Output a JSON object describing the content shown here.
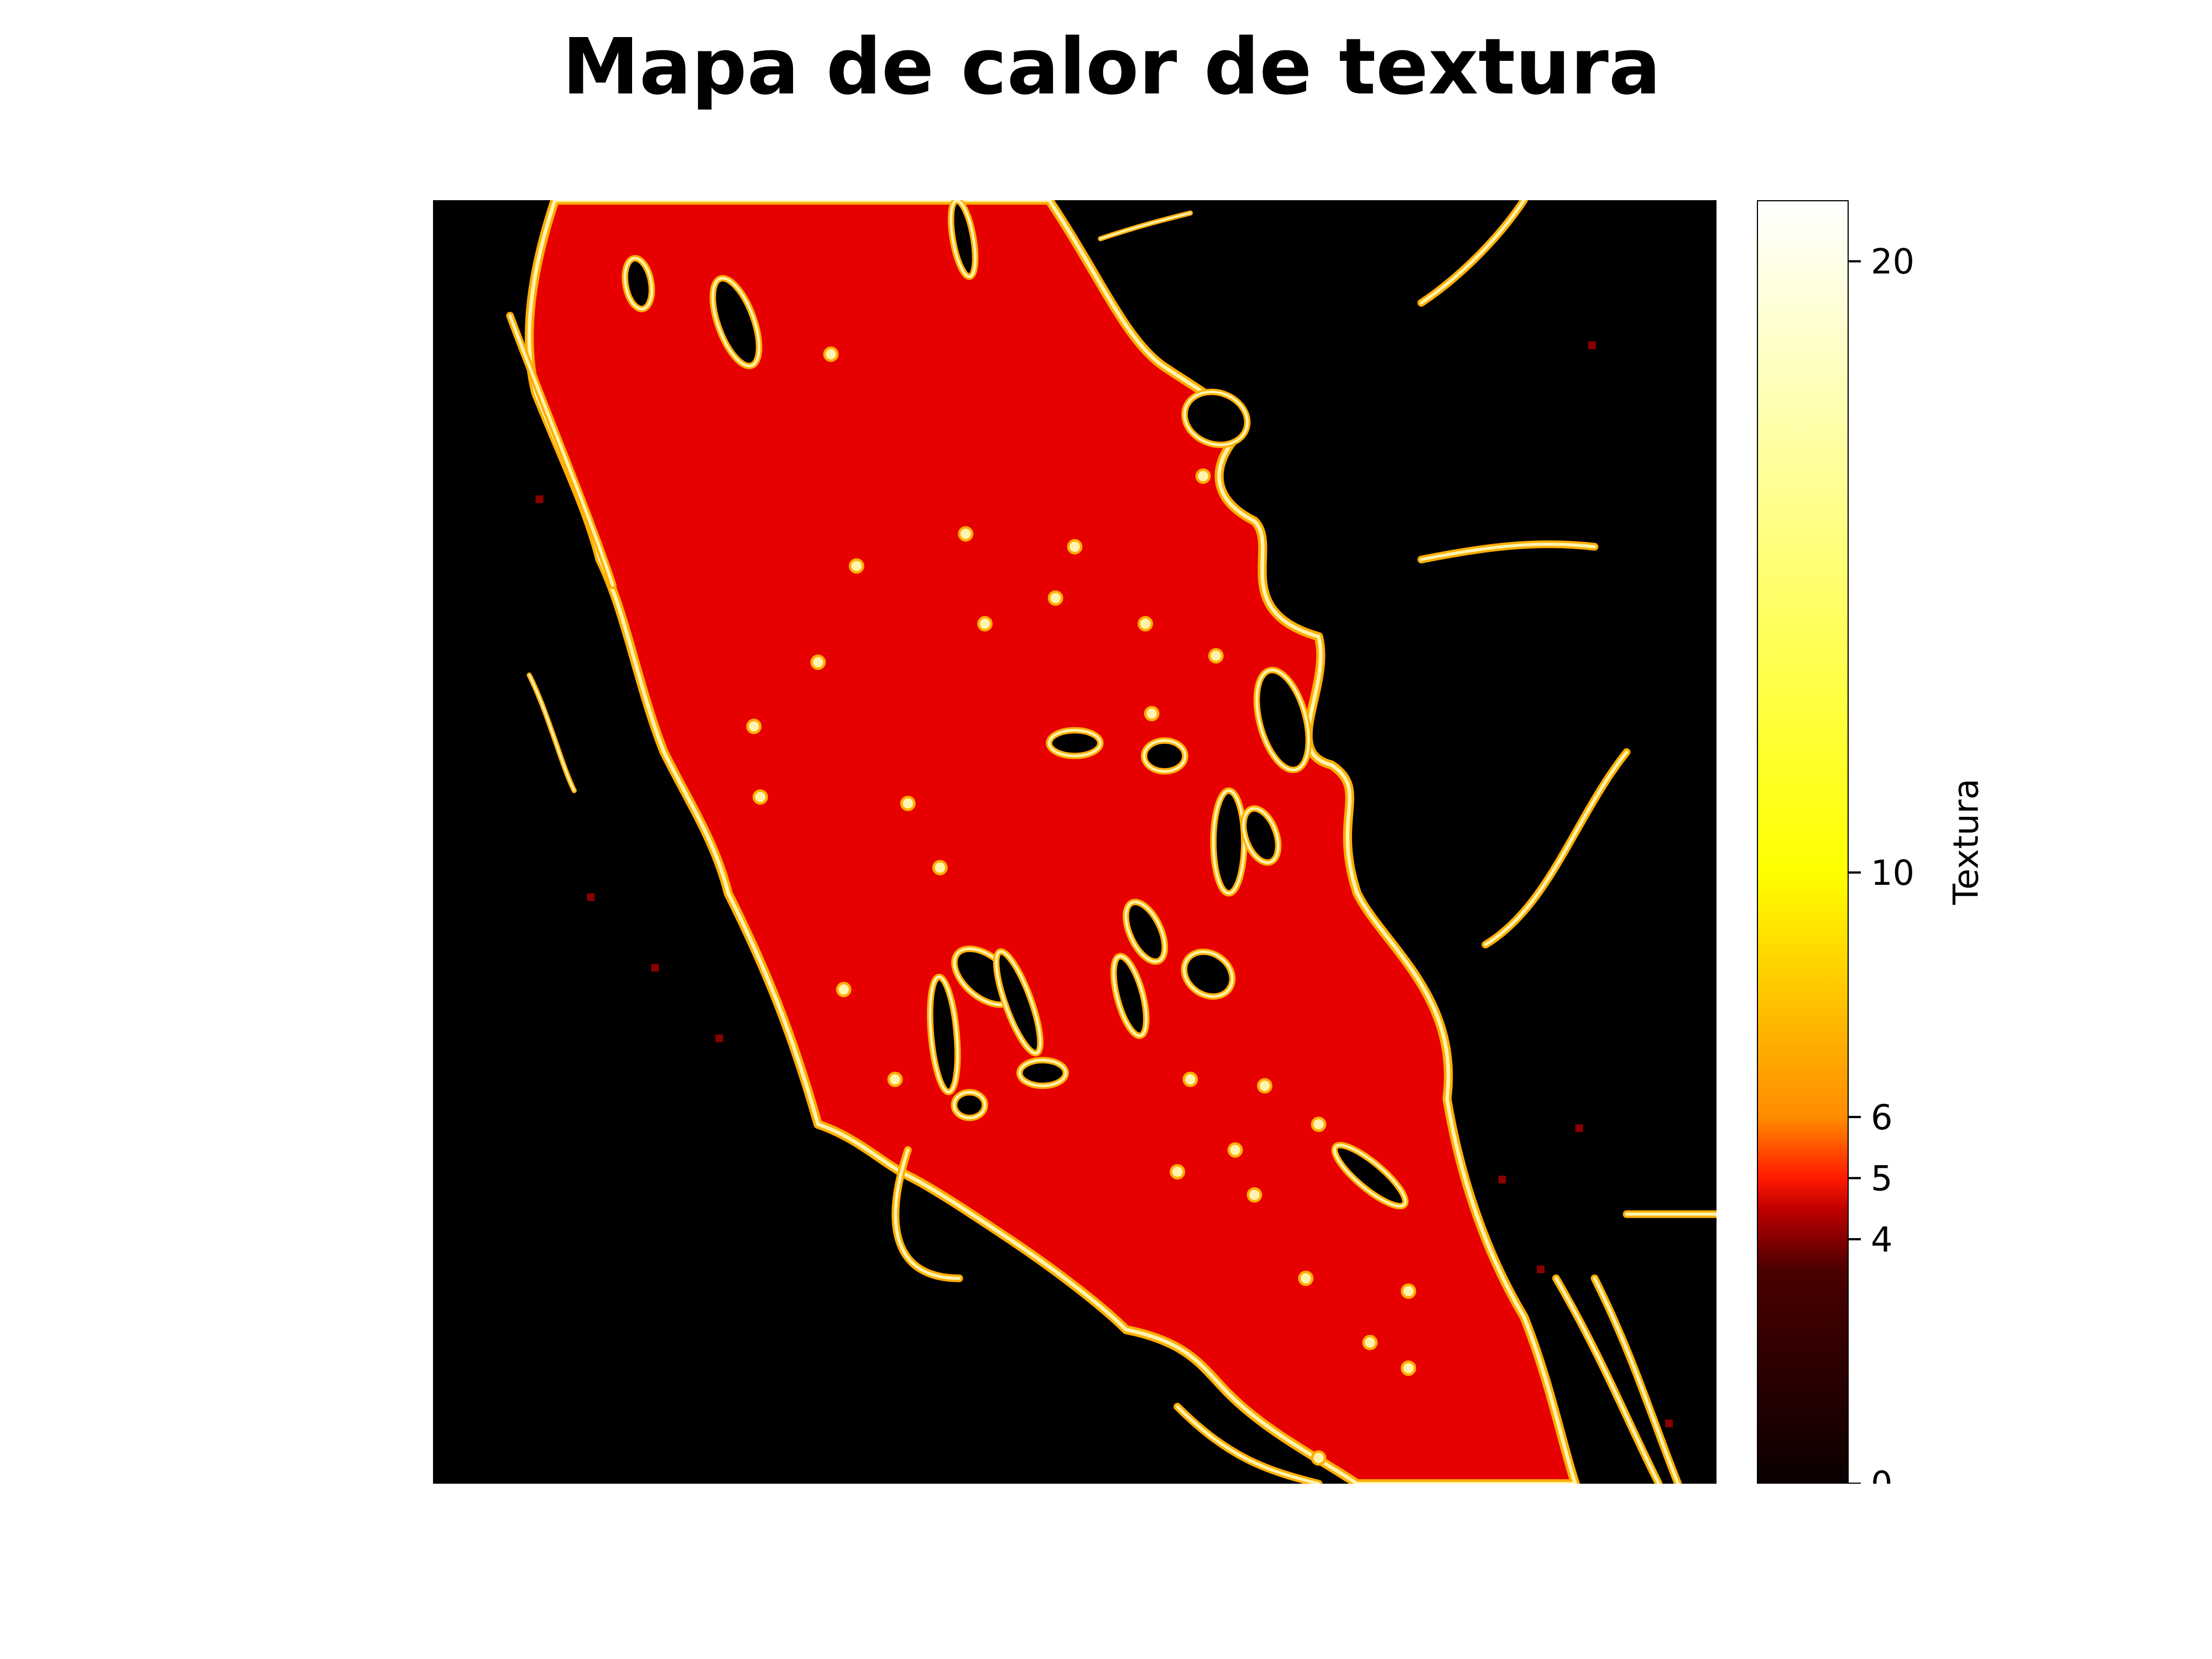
{
  "title": "Mapa de calor de textura",
  "chart_data": {
    "type": "heatmap",
    "title": "Mapa de calor de textura",
    "xlabel": "",
    "ylabel": "",
    "axes_visible": false,
    "colormap": "hot",
    "colorbar": {
      "label": "Textura",
      "range": [
        0,
        21
      ],
      "ticks": [
        0,
        4,
        5,
        6,
        10,
        20
      ],
      "tick_labels": [
        "0",
        "4",
        "5",
        "6",
        "10",
        "20"
      ],
      "stops": [
        {
          "value": 0,
          "color": "#0a0000"
        },
        {
          "value": 3.5,
          "color": "#4a0000"
        },
        {
          "value": 4.5,
          "color": "#c00000"
        },
        {
          "value": 5,
          "color": "#ff1a00"
        },
        {
          "value": 6,
          "color": "#ff8c00"
        },
        {
          "value": 10,
          "color": "#ffff00"
        },
        {
          "value": 21,
          "color": "#ffffff"
        }
      ]
    },
    "regions": {
      "background_value": 0,
      "river_fill_value": 4.7,
      "edge_value": 8
    },
    "colors": {
      "background": "#000000",
      "river": "#e60000",
      "edge_outer": "#ffae00",
      "edge_inner": "#fff3b0"
    }
  }
}
